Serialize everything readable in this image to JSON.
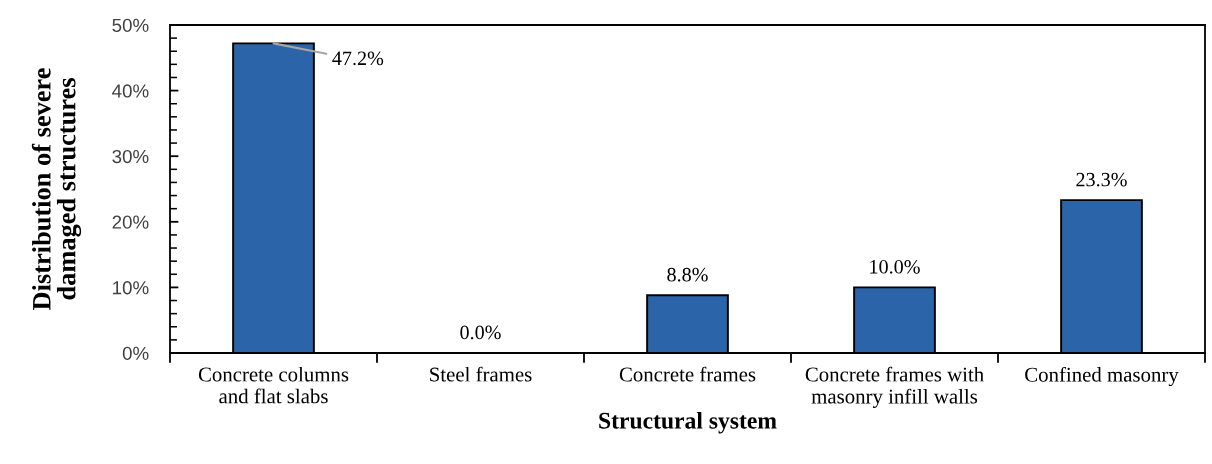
{
  "chart_data": {
    "type": "bar",
    "xlabel": "Structural system",
    "ylabel": "Distribution of severe\ndamaged structures",
    "categories": [
      "Concrete columns\nand flat slabs",
      "Steel frames",
      "Concrete frames",
      "Concrete frames with\nmasonry infill walls",
      "Confined masonry"
    ],
    "values": [
      47.2,
      0.0,
      8.8,
      10.0,
      23.3
    ],
    "value_labels": [
      "47.2%",
      "0.0%",
      "8.8%",
      "10.0%",
      "23.3%"
    ],
    "color": "#2c64a9",
    "ylim": [
      0,
      50
    ],
    "yticks": [
      {
        "value": 0,
        "label": "0%"
      },
      {
        "value": 2,
        "label": null
      },
      {
        "value": 4,
        "label": null
      },
      {
        "value": 6,
        "label": null
      },
      {
        "value": 8,
        "label": null
      },
      {
        "value": 10,
        "label": "10%"
      },
      {
        "value": 12,
        "label": null
      },
      {
        "value": 14,
        "label": null
      },
      {
        "value": 16,
        "label": null
      },
      {
        "value": 18,
        "label": null
      },
      {
        "value": 20,
        "label": "20%"
      },
      {
        "value": 22,
        "label": null
      },
      {
        "value": 24,
        "label": null
      },
      {
        "value": 26,
        "label": null
      },
      {
        "value": 28,
        "label": null
      },
      {
        "value": 30,
        "label": "30%"
      },
      {
        "value": 32,
        "label": null
      },
      {
        "value": 34,
        "label": null
      },
      {
        "value": 36,
        "label": null
      },
      {
        "value": 38,
        "label": null
      },
      {
        "value": 40,
        "label": "40%"
      },
      {
        "value": 42,
        "label": null
      },
      {
        "value": 44,
        "label": null
      },
      {
        "value": 46,
        "label": null
      },
      {
        "value": 48,
        "label": null
      },
      {
        "value": 50,
        "label": "50%"
      }
    ],
    "grid": false
  }
}
